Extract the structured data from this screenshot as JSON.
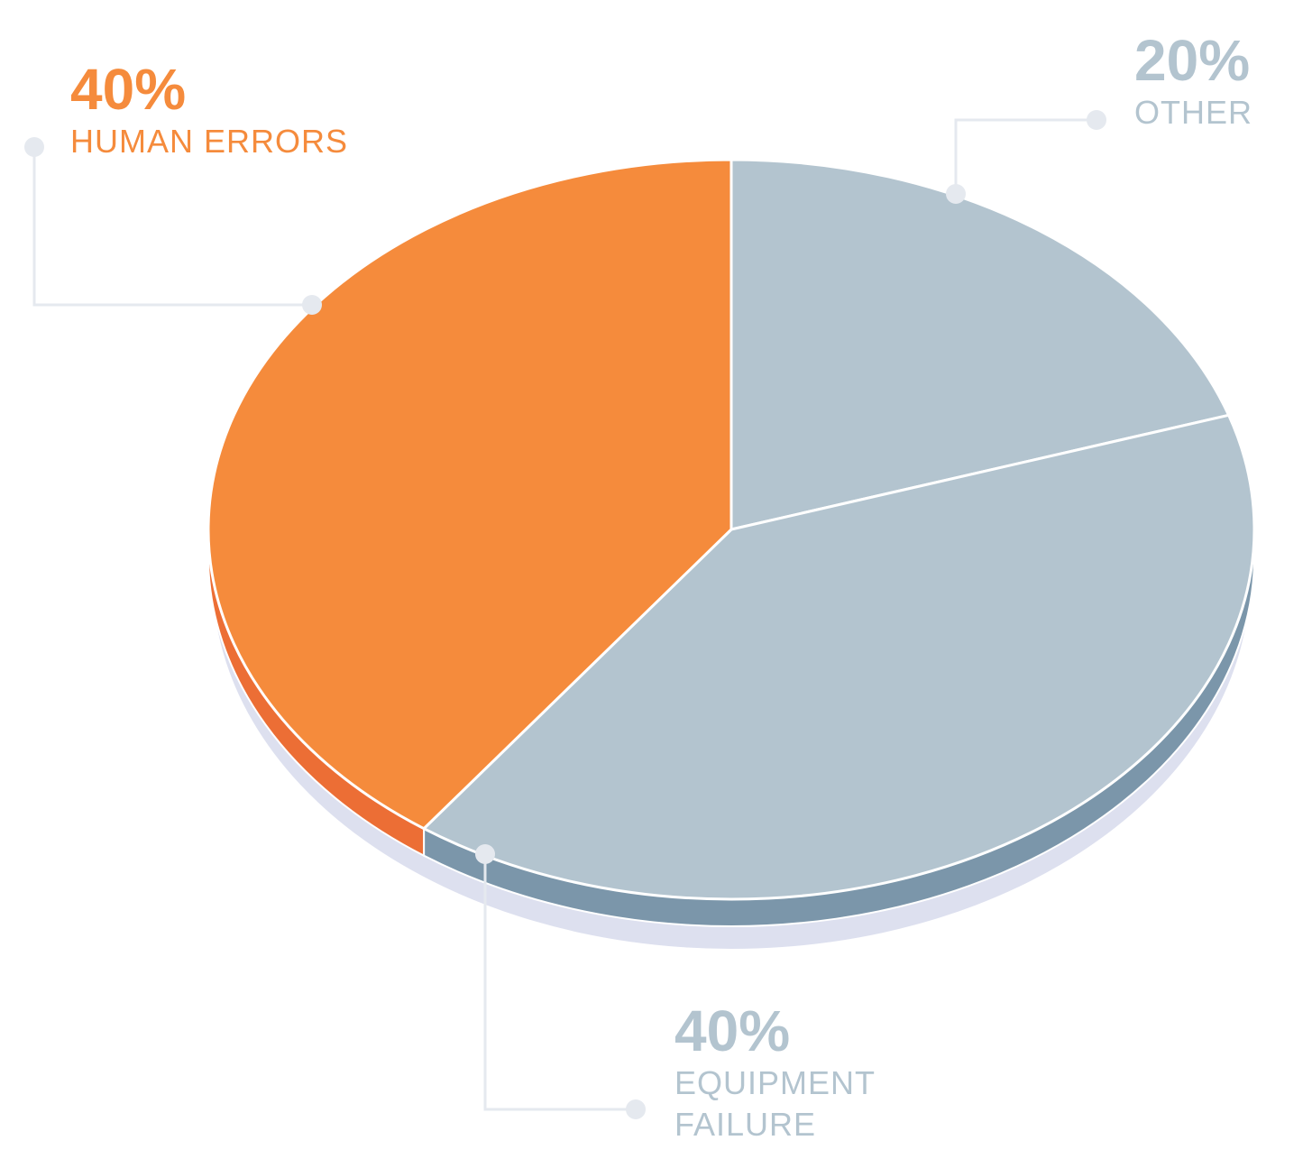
{
  "chart_data": {
    "type": "pie",
    "categories": [
      "OTHER",
      "EQUIPMENT FAILURE",
      "HUMAN ERRORS"
    ],
    "values": [
      20,
      40,
      40
    ],
    "value_labels": [
      "20%",
      "40%",
      "40%"
    ],
    "colors": [
      "#b3c4cf",
      "#b3c4cf",
      "#f58b3c"
    ],
    "side_colors": [
      "#7b96aa",
      "#7b96aa",
      "#ec6e35"
    ]
  }
}
